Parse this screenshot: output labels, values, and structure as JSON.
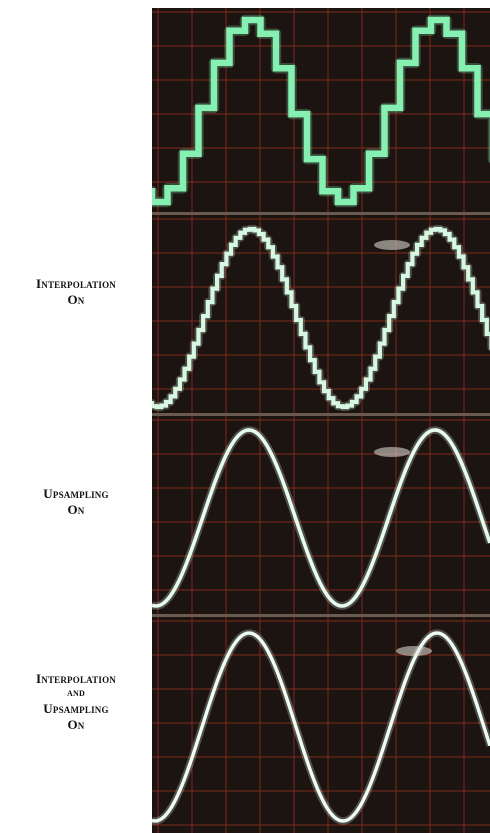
{
  "panels": [
    {
      "name": "panel-original",
      "label": [],
      "waveform": "stepped-coarse",
      "trace_color": "#86f0b2"
    },
    {
      "name": "panel-interpolation-on",
      "label": [
        "Interpolation",
        "On"
      ],
      "waveform": "stepped-fine",
      "trace_color": "#d6f7e2"
    },
    {
      "name": "panel-upsampling-on",
      "label": [
        "Upsampling",
        "On"
      ],
      "waveform": "smooth",
      "trace_color": "#e6fbef"
    },
    {
      "name": "panel-interpolation-and-upsampling-on",
      "label": [
        "Interpolation",
        "and",
        "Upsampling",
        "On"
      ],
      "waveform": "smooth",
      "trace_color": "#eefdf4"
    }
  ],
  "colors": {
    "screen_bg": "#1c1410",
    "grid": "#7a2a1e",
    "divider": "#6b5a52",
    "glare": "#e8e4dc"
  }
}
